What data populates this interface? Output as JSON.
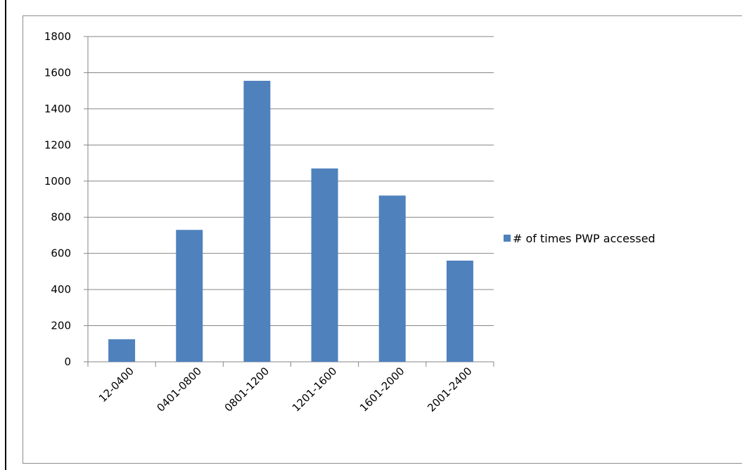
{
  "chart_data": {
    "type": "bar",
    "title": "",
    "xlabel": "",
    "ylabel": "",
    "categories": [
      "12-0400",
      "0401-0800",
      "0801-1200",
      "1201-1600",
      "1601-2000",
      "2001-2400"
    ],
    "series": [
      {
        "name": "# of times PWP accessed",
        "values": [
          125,
          730,
          1555,
          1070,
          920,
          560
        ],
        "color": "#4f81bd"
      }
    ],
    "ylim": [
      0,
      1800
    ],
    "yticks": [
      0,
      200,
      400,
      600,
      800,
      1000,
      1200,
      1400,
      1600,
      1800
    ],
    "grid": true,
    "legend_position": "right"
  }
}
